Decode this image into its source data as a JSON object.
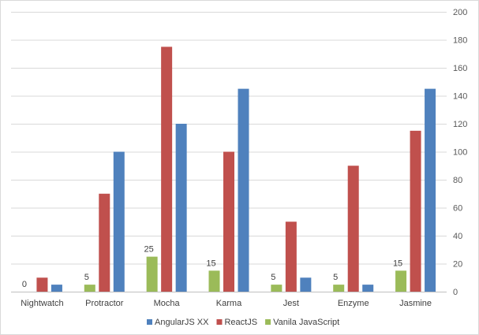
{
  "chart_data": {
    "type": "bar",
    "title": "",
    "xlabel": "",
    "ylabel": "",
    "ylim": [
      0,
      200
    ],
    "ytick_step": 20,
    "y_axis_side": "right",
    "grid": true,
    "legend_position": "bottom",
    "categories": [
      "Nightwatch",
      "Protractor",
      "Mocha",
      "Karma",
      "Jest",
      "Enzyme",
      "Jasmine"
    ],
    "series": [
      {
        "name": "Vanila JavaScript",
        "color": "#9bbb59",
        "values": [
          0,
          5,
          25,
          15,
          5,
          5,
          15
        ],
        "data_labels": true
      },
      {
        "name": "ReactJS",
        "color": "#c0504d",
        "values": [
          10,
          70,
          175,
          100,
          50,
          90,
          115
        ],
        "data_labels": false
      },
      {
        "name": "AngularJS XX",
        "color": "#4f81bd",
        "values": [
          5,
          100,
          120,
          145,
          10,
          5,
          145
        ],
        "data_labels": false
      }
    ],
    "legend_order": [
      "AngularJS XX",
      "ReactJS",
      "Vanila JavaScript"
    ]
  }
}
